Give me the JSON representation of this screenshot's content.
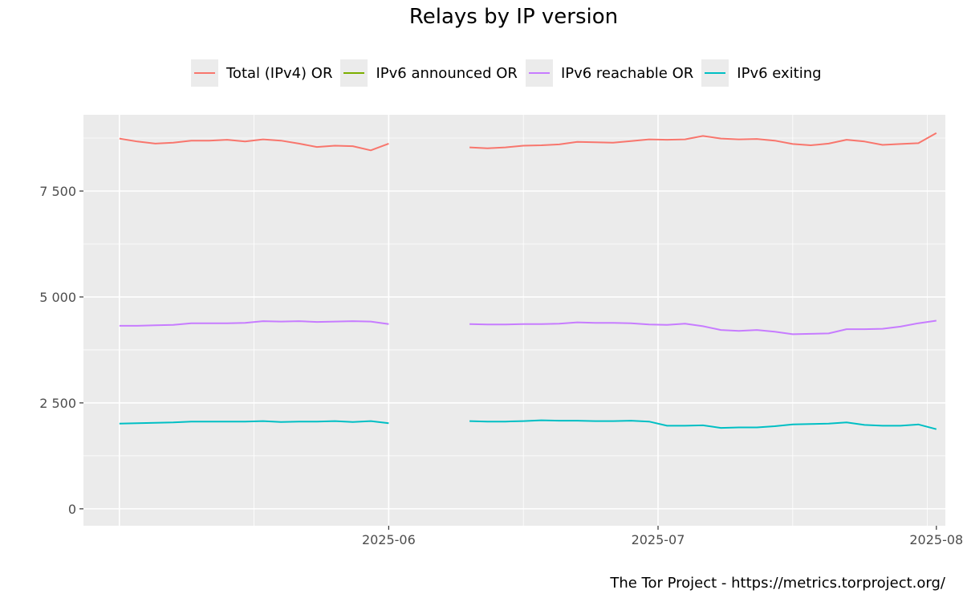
{
  "chart_data": {
    "type": "line",
    "title": "Relays by IP version",
    "caption": "The Tor Project - https://metrics.torproject.org/",
    "legend_position": "top",
    "grid": true,
    "x_axis": {
      "type": "date",
      "range": [
        "2025-04-28",
        "2025-08-02"
      ],
      "ticks": [
        "2025-06",
        "2025-07",
        "2025-08"
      ]
    },
    "y_axis": {
      "range": [
        -400,
        9300
      ],
      "ticks": [
        0,
        2500,
        5000,
        7500
      ],
      "tick_labels": [
        "0",
        "2 500",
        "5 000",
        "7 500"
      ]
    },
    "gap": [
      "2025-06-01",
      "2025-06-10"
    ],
    "series": [
      {
        "name": "Total (IPv4) OR",
        "color": "#F8766D",
        "segments": [
          [
            [
              "2025-05-02",
              8740
            ],
            [
              "2025-05-04",
              8670
            ],
            [
              "2025-05-06",
              8620
            ],
            [
              "2025-05-08",
              8640
            ],
            [
              "2025-05-10",
              8690
            ],
            [
              "2025-05-12",
              8690
            ],
            [
              "2025-05-14",
              8710
            ],
            [
              "2025-05-16",
              8670
            ],
            [
              "2025-05-18",
              8720
            ],
            [
              "2025-05-20",
              8690
            ],
            [
              "2025-05-22",
              8620
            ],
            [
              "2025-05-24",
              8540
            ],
            [
              "2025-05-26",
              8570
            ],
            [
              "2025-05-28",
              8560
            ],
            [
              "2025-05-30",
              8460
            ],
            [
              "2025-06-01",
              8620
            ]
          ],
          [
            [
              "2025-06-10",
              8530
            ],
            [
              "2025-06-12",
              8510
            ],
            [
              "2025-06-14",
              8530
            ],
            [
              "2025-06-16",
              8570
            ],
            [
              "2025-06-18",
              8580
            ],
            [
              "2025-06-20",
              8600
            ],
            [
              "2025-06-22",
              8660
            ],
            [
              "2025-06-24",
              8650
            ],
            [
              "2025-06-26",
              8640
            ],
            [
              "2025-06-28",
              8680
            ],
            [
              "2025-06-30",
              8720
            ],
            [
              "2025-07-02",
              8710
            ],
            [
              "2025-07-04",
              8720
            ],
            [
              "2025-07-06",
              8800
            ],
            [
              "2025-07-08",
              8740
            ],
            [
              "2025-07-10",
              8720
            ],
            [
              "2025-07-12",
              8730
            ],
            [
              "2025-07-14",
              8690
            ],
            [
              "2025-07-16",
              8610
            ],
            [
              "2025-07-18",
              8580
            ],
            [
              "2025-07-20",
              8620
            ],
            [
              "2025-07-22",
              8710
            ],
            [
              "2025-07-24",
              8670
            ],
            [
              "2025-07-26",
              8590
            ],
            [
              "2025-07-28",
              8610
            ],
            [
              "2025-07-30",
              8630
            ],
            [
              "2025-08-01",
              8870
            ]
          ]
        ]
      },
      {
        "name": "IPv6 announced OR",
        "color": "#7CAE00",
        "segments": []
      },
      {
        "name": "IPv6 reachable OR",
        "color": "#C77CFF",
        "segments": [
          [
            [
              "2025-05-02",
              4320
            ],
            [
              "2025-05-04",
              4320
            ],
            [
              "2025-05-06",
              4330
            ],
            [
              "2025-05-08",
              4340
            ],
            [
              "2025-05-10",
              4380
            ],
            [
              "2025-05-12",
              4380
            ],
            [
              "2025-05-14",
              4380
            ],
            [
              "2025-05-16",
              4390
            ],
            [
              "2025-05-18",
              4430
            ],
            [
              "2025-05-20",
              4420
            ],
            [
              "2025-05-22",
              4430
            ],
            [
              "2025-05-24",
              4410
            ],
            [
              "2025-05-26",
              4420
            ],
            [
              "2025-05-28",
              4430
            ],
            [
              "2025-05-30",
              4420
            ],
            [
              "2025-06-01",
              4360
            ]
          ],
          [
            [
              "2025-06-10",
              4360
            ],
            [
              "2025-06-12",
              4350
            ],
            [
              "2025-06-14",
              4350
            ],
            [
              "2025-06-16",
              4360
            ],
            [
              "2025-06-18",
              4360
            ],
            [
              "2025-06-20",
              4370
            ],
            [
              "2025-06-22",
              4400
            ],
            [
              "2025-06-24",
              4390
            ],
            [
              "2025-06-26",
              4390
            ],
            [
              "2025-06-28",
              4380
            ],
            [
              "2025-06-30",
              4350
            ],
            [
              "2025-07-02",
              4340
            ],
            [
              "2025-07-04",
              4370
            ],
            [
              "2025-07-06",
              4310
            ],
            [
              "2025-07-08",
              4220
            ],
            [
              "2025-07-10",
              4200
            ],
            [
              "2025-07-12",
              4220
            ],
            [
              "2025-07-14",
              4180
            ],
            [
              "2025-07-16",
              4120
            ],
            [
              "2025-07-18",
              4130
            ],
            [
              "2025-07-20",
              4140
            ],
            [
              "2025-07-22",
              4240
            ],
            [
              "2025-07-24",
              4240
            ],
            [
              "2025-07-26",
              4250
            ],
            [
              "2025-07-28",
              4300
            ],
            [
              "2025-07-30",
              4380
            ],
            [
              "2025-08-01",
              4440
            ]
          ]
        ]
      },
      {
        "name": "IPv6 exiting",
        "color": "#00BFC4",
        "segments": [
          [
            [
              "2025-05-02",
              2010
            ],
            [
              "2025-05-04",
              2020
            ],
            [
              "2025-05-06",
              2030
            ],
            [
              "2025-05-08",
              2040
            ],
            [
              "2025-05-10",
              2060
            ],
            [
              "2025-05-12",
              2060
            ],
            [
              "2025-05-14",
              2060
            ],
            [
              "2025-05-16",
              2060
            ],
            [
              "2025-05-18",
              2070
            ],
            [
              "2025-05-20",
              2050
            ],
            [
              "2025-05-22",
              2060
            ],
            [
              "2025-05-24",
              2060
            ],
            [
              "2025-05-26",
              2070
            ],
            [
              "2025-05-28",
              2050
            ],
            [
              "2025-05-30",
              2070
            ],
            [
              "2025-06-01",
              2020
            ]
          ],
          [
            [
              "2025-06-10",
              2070
            ],
            [
              "2025-06-12",
              2060
            ],
            [
              "2025-06-14",
              2060
            ],
            [
              "2025-06-16",
              2070
            ],
            [
              "2025-06-18",
              2090
            ],
            [
              "2025-06-20",
              2080
            ],
            [
              "2025-06-22",
              2080
            ],
            [
              "2025-06-24",
              2070
            ],
            [
              "2025-06-26",
              2070
            ],
            [
              "2025-06-28",
              2080
            ],
            [
              "2025-06-30",
              2060
            ],
            [
              "2025-07-02",
              1960
            ],
            [
              "2025-07-04",
              1960
            ],
            [
              "2025-07-06",
              1970
            ],
            [
              "2025-07-08",
              1910
            ],
            [
              "2025-07-10",
              1920
            ],
            [
              "2025-07-12",
              1920
            ],
            [
              "2025-07-14",
              1950
            ],
            [
              "2025-07-16",
              1990
            ],
            [
              "2025-07-18",
              2000
            ],
            [
              "2025-07-20",
              2010
            ],
            [
              "2025-07-22",
              2040
            ],
            [
              "2025-07-24",
              1980
            ],
            [
              "2025-07-26",
              1960
            ],
            [
              "2025-07-28",
              1960
            ],
            [
              "2025-07-30",
              1990
            ],
            [
              "2025-08-01",
              1880
            ]
          ]
        ]
      }
    ]
  }
}
